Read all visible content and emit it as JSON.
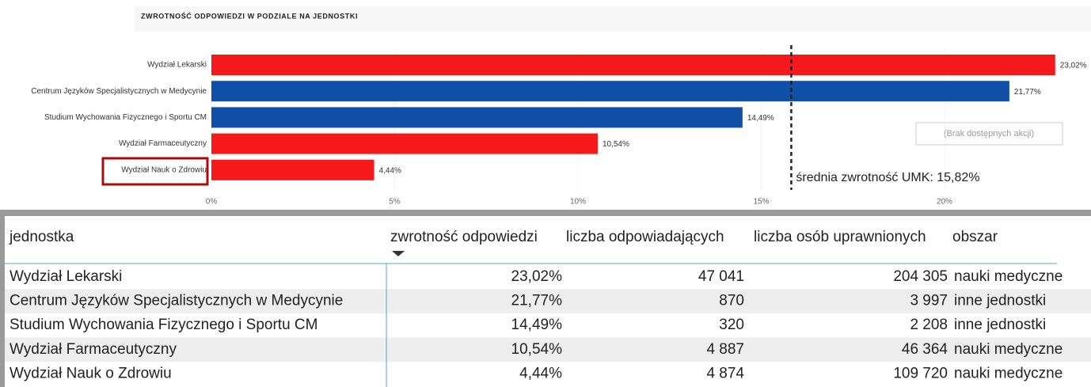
{
  "chart_data": {
    "type": "bar",
    "orientation": "horizontal",
    "title": "ZWROTNOŚĆ ODPOWIEDZI W PODZIALE NA JEDNOSTKI",
    "categories": [
      "Wydział Lekarski",
      "Centrum Języków Specjalistycznych w Medycynie",
      "Studium Wychowania Fizycznego i Sportu CM",
      "Wydział Farmaceutyczny",
      "Wydział Nauk o Zdrowiu"
    ],
    "values": [
      23.02,
      21.77,
      14.49,
      10.54,
      4.44
    ],
    "value_labels": [
      "23,02%",
      "21,77%",
      "14,49%",
      "10,54%",
      "4,44%"
    ],
    "colors": [
      "#f5191c",
      "#0f4fa8",
      "#0f4fa8",
      "#f5191c",
      "#f5191c"
    ],
    "xlim": [
      0,
      23.5
    ],
    "xticks": [
      {
        "value": 0,
        "label": "0%"
      },
      {
        "value": 5,
        "label": "5%"
      },
      {
        "value": 10,
        "label": "10%"
      },
      {
        "value": 15,
        "label": "15%"
      },
      {
        "value": 20,
        "label": "20%"
      }
    ],
    "grid": true,
    "reference_line": {
      "value": 15.82,
      "label": "średnia zwrotność UMK: 15,82%"
    }
  },
  "tooltip": "(Brak dostępnych akcji)",
  "table": {
    "columns": [
      "jednostka",
      "zwrotność odpowiedzi",
      "liczba odpowiadających",
      "liczba osób uprawnionych",
      "obszar"
    ],
    "rows": [
      [
        "Wydział Lekarski",
        "23,02%",
        "47 041",
        "204 305",
        "nauki medyczne"
      ],
      [
        "Centrum Języków Specjalistycznych w Medycynie",
        "21,77%",
        "870",
        "3 997",
        "inne jednostki"
      ],
      [
        "Studium Wychowania Fizycznego i Sportu CM",
        "14,49%",
        "320",
        "2 208",
        "inne jednostki"
      ],
      [
        "Wydział Farmaceutyczny",
        "10,54%",
        "4 887",
        "46 364",
        "nauki medyczne"
      ],
      [
        "Wydział Nauk o Zdrowiu",
        "4,44%",
        "4 874",
        "109 720",
        "nauki medyczne"
      ]
    ]
  }
}
